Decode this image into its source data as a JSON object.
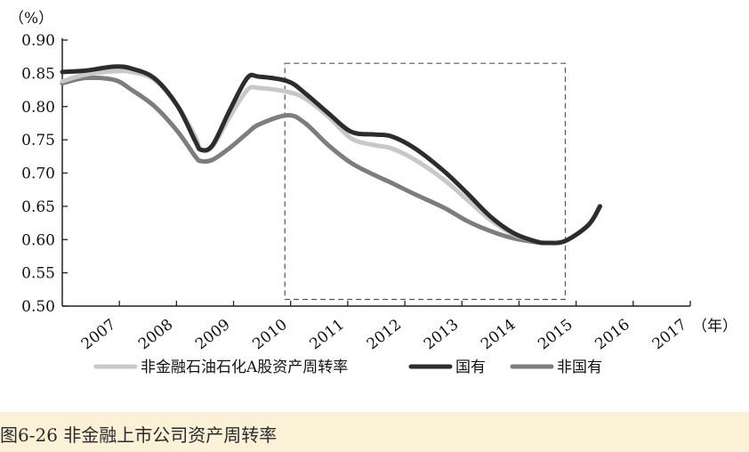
{
  "figure": {
    "caption": "图6-26 非金融上市公司资产周转率"
  },
  "chart_data": {
    "type": "line",
    "y_unit_label": "（%）",
    "x_unit_label": "（年）",
    "categories": [
      "2007",
      "2008",
      "2009",
      "2010",
      "2011",
      "2012",
      "2013",
      "2014",
      "2015",
      "2016",
      "2017"
    ],
    "yticks": [
      "0.50",
      "0.55",
      "0.60",
      "0.65",
      "0.70",
      "0.75",
      "0.80",
      "0.85",
      "0.90"
    ],
    "ylim": [
      0.5,
      0.9
    ],
    "xlim": [
      2006.6,
      2017
    ],
    "legend_position": "bottom",
    "grid": false,
    "highlight_box": {
      "x_range": [
        2010.45,
        2015.3
      ],
      "y_range": [
        0.51,
        0.865
      ],
      "style": "dashed"
    },
    "series": [
      {
        "name": "非金融石油石化A股资产周转率",
        "color": "#c8c8c8",
        "width": 5,
        "points": [
          [
            2006.6,
            0.838
          ],
          [
            2007.0,
            0.848
          ],
          [
            2007.5,
            0.853
          ],
          [
            2007.8,
            0.852
          ],
          [
            2008.2,
            0.84
          ],
          [
            2008.6,
            0.8
          ],
          [
            2008.9,
            0.755
          ],
          [
            2009.0,
            0.735
          ],
          [
            2009.2,
            0.74
          ],
          [
            2009.5,
            0.785
          ],
          [
            2009.8,
            0.825
          ],
          [
            2010.0,
            0.828
          ],
          [
            2010.5,
            0.822
          ],
          [
            2010.8,
            0.812
          ],
          [
            2011.2,
            0.785
          ],
          [
            2011.6,
            0.752
          ],
          [
            2012.0,
            0.742
          ],
          [
            2012.3,
            0.737
          ],
          [
            2012.7,
            0.72
          ],
          [
            2013.2,
            0.69
          ],
          [
            2013.6,
            0.66
          ],
          [
            2014.0,
            0.63
          ],
          [
            2014.4,
            0.608
          ],
          [
            2014.8,
            0.597
          ],
          [
            2015.0,
            0.595
          ],
          [
            2015.3,
            0.598
          ],
          [
            2015.7,
            0.622
          ],
          [
            2015.9,
            0.65
          ]
        ]
      },
      {
        "name": "国有",
        "color": "#2c2c2c",
        "width": 5,
        "points": [
          [
            2006.6,
            0.852
          ],
          [
            2007.0,
            0.854
          ],
          [
            2007.5,
            0.86
          ],
          [
            2007.8,
            0.857
          ],
          [
            2008.2,
            0.842
          ],
          [
            2008.6,
            0.8
          ],
          [
            2008.9,
            0.748
          ],
          [
            2009.0,
            0.735
          ],
          [
            2009.2,
            0.742
          ],
          [
            2009.5,
            0.795
          ],
          [
            2009.8,
            0.843
          ],
          [
            2010.0,
            0.845
          ],
          [
            2010.5,
            0.838
          ],
          [
            2010.8,
            0.82
          ],
          [
            2011.2,
            0.79
          ],
          [
            2011.6,
            0.762
          ],
          [
            2012.0,
            0.758
          ],
          [
            2012.3,
            0.755
          ],
          [
            2012.7,
            0.737
          ],
          [
            2013.2,
            0.703
          ],
          [
            2013.6,
            0.67
          ],
          [
            2014.0,
            0.635
          ],
          [
            2014.4,
            0.61
          ],
          [
            2014.8,
            0.597
          ],
          [
            2015.0,
            0.595
          ],
          [
            2015.3,
            0.598
          ],
          [
            2015.7,
            0.622
          ],
          [
            2015.9,
            0.65
          ]
        ]
      },
      {
        "name": "非国有",
        "color": "#7d7d7d",
        "width": 5,
        "points": [
          [
            2006.6,
            0.835
          ],
          [
            2007.0,
            0.843
          ],
          [
            2007.5,
            0.84
          ],
          [
            2007.8,
            0.825
          ],
          [
            2008.2,
            0.8
          ],
          [
            2008.6,
            0.762
          ],
          [
            2008.9,
            0.725
          ],
          [
            2009.0,
            0.718
          ],
          [
            2009.2,
            0.72
          ],
          [
            2009.5,
            0.738
          ],
          [
            2009.8,
            0.76
          ],
          [
            2010.0,
            0.773
          ],
          [
            2010.5,
            0.787
          ],
          [
            2010.8,
            0.775
          ],
          [
            2011.2,
            0.742
          ],
          [
            2011.6,
            0.715
          ],
          [
            2012.0,
            0.697
          ],
          [
            2012.3,
            0.685
          ],
          [
            2012.7,
            0.668
          ],
          [
            2013.2,
            0.648
          ],
          [
            2013.6,
            0.628
          ],
          [
            2014.0,
            0.613
          ],
          [
            2014.4,
            0.602
          ],
          [
            2014.8,
            0.596
          ],
          [
            2015.0,
            0.595
          ],
          [
            2015.3,
            0.598
          ],
          [
            2015.7,
            0.622
          ],
          [
            2015.9,
            0.65
          ]
        ]
      }
    ]
  }
}
